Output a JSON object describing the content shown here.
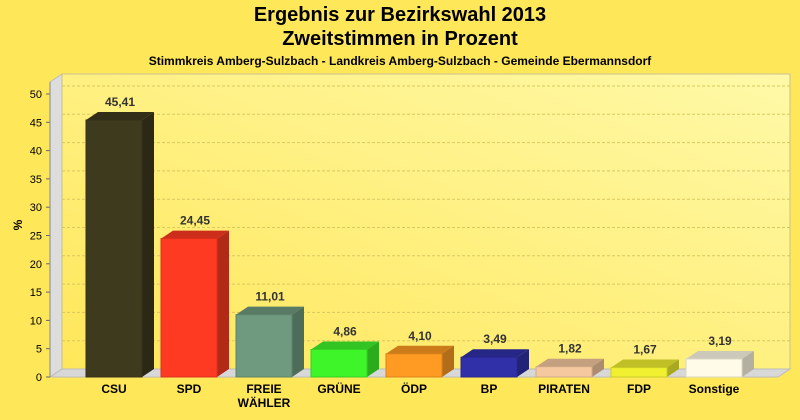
{
  "chart_data": {
    "type": "bar",
    "title": "Ergebnis zur Bezirkswahl 2013",
    "subtitle": "Zweitstimmen in Prozent",
    "subtitle2": "Stimmkreis Amberg-Sulzbach - Landkreis Amberg-Sulzbach - Gemeinde Ebermannsdorf",
    "ylabel": "%",
    "xlabel": "",
    "ylim": [
      0,
      50
    ],
    "yticks": [
      0,
      5,
      10,
      15,
      20,
      25,
      30,
      35,
      40,
      45,
      50
    ],
    "grid": true,
    "categories": [
      "CSU",
      "SPD",
      "FREIE WÄHLER",
      "GRÜNE",
      "ÖDP",
      "BP",
      "PIRATEN",
      "FDP",
      "Sonstige"
    ],
    "values": [
      45.41,
      24.45,
      11.01,
      4.86,
      4.1,
      3.49,
      1.82,
      1.67,
      3.19
    ],
    "labels": [
      "45,41",
      "24,45",
      "11,01",
      "4,86",
      "4,10",
      "3,49",
      "1,82",
      "1,67",
      "3,19"
    ],
    "colors": [
      "#3e3a1e",
      "#ff3a22",
      "#6f9a80",
      "#3ef52a",
      "#ff9a22",
      "#3030a8",
      "#f5c8a0",
      "#f0f030",
      "#fffbe8"
    ]
  }
}
